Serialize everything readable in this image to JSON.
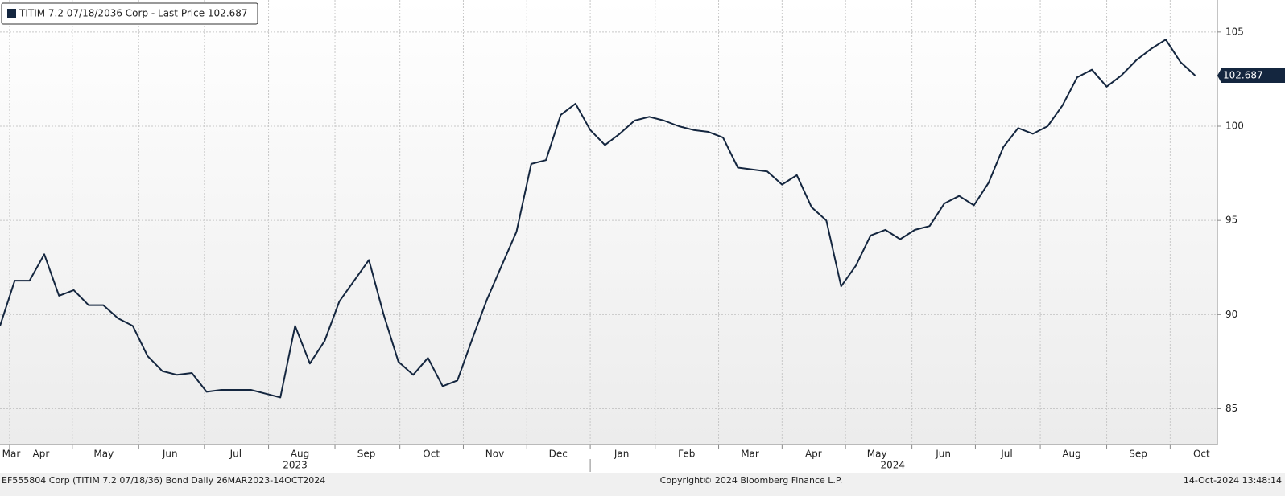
{
  "chart_data": {
    "type": "line",
    "series": [
      {
        "name": "TITIM 7.2 07/18/2036 Corp - Last Price 102.687",
        "color": "#14263f",
        "values": [
          89.4,
          91.8,
          91.8,
          93.2,
          91.0,
          91.3,
          90.5,
          90.5,
          89.8,
          89.4,
          87.8,
          87.0,
          86.8,
          86.9,
          85.9,
          86.0,
          86.0,
          86.0,
          85.8,
          85.6,
          89.4,
          87.4,
          88.6,
          90.7,
          91.8,
          92.9,
          90.0,
          87.5,
          86.8,
          87.7,
          86.2,
          86.5,
          88.7,
          90.8,
          92.6,
          94.4,
          98.0,
          98.2,
          100.6,
          101.2,
          99.8,
          99.0,
          99.6,
          100.3,
          100.5,
          100.3,
          100.0,
          99.8,
          99.7,
          99.4,
          97.8,
          97.7,
          97.6,
          96.9,
          97.4,
          95.7,
          95.0,
          91.5,
          92.6,
          94.2,
          94.5,
          94.0,
          94.5,
          94.7,
          95.9,
          96.3,
          95.8,
          97.0,
          98.9,
          99.9,
          99.6,
          100.0,
          101.1,
          102.6,
          103.0,
          102.1,
          102.7,
          103.5,
          104.1,
          104.6,
          103.4,
          102.687
        ]
      }
    ],
    "xlim": [
      0,
      82.5
    ],
    "xticks": [
      {
        "value": -3.8,
        "label": "Mar"
      },
      {
        "value": 0.65,
        "label": "Apr"
      },
      {
        "value": 4.9,
        "label": "May"
      },
      {
        "value": 9.4,
        "label": "Jun"
      },
      {
        "value": 13.85,
        "label": "Jul"
      },
      {
        "value": 18.2,
        "label": "Aug"
      },
      {
        "value": 22.7,
        "label": "Sep"
      },
      {
        "value": 27.1,
        "label": "Oct"
      },
      {
        "value": 31.4,
        "label": "Nov"
      },
      {
        "value": 35.7,
        "label": "Dec"
      },
      {
        "value": 40.0,
        "label": "Jan"
      },
      {
        "value": 44.4,
        "label": "Feb"
      },
      {
        "value": 48.7,
        "label": "Mar"
      },
      {
        "value": 53.0,
        "label": "Apr"
      },
      {
        "value": 57.3,
        "label": "May"
      },
      {
        "value": 61.8,
        "label": "Jun"
      },
      {
        "value": 66.1,
        "label": "Jul"
      },
      {
        "value": 70.5,
        "label": "Aug"
      },
      {
        "value": 75.0,
        "label": "Sep"
      },
      {
        "value": 79.3,
        "label": "Oct"
      }
    ],
    "year_ticks": [
      {
        "value": -12.1,
        "label": "2023"
      },
      {
        "value": 40.0,
        "label": "2024"
      }
    ],
    "ylim": [
      83.1,
      106.7
    ],
    "yticks": [
      85,
      90,
      95,
      100,
      105
    ],
    "grid": true
  },
  "footer": {
    "left": "EF555804 Corp (TITIM 7.2 07/18/36) Bond  Daily 26MAR2023-14OCT2024",
    "center": "Copyright© 2024 Bloomberg Finance L.P.",
    "right": "14-Oct-2024 13:48:14"
  }
}
